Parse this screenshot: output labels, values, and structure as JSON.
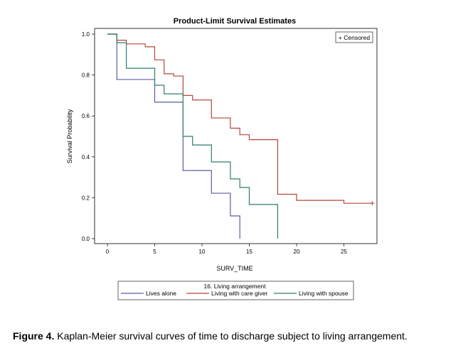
{
  "chart_data": {
    "type": "line",
    "step": true,
    "title": "Product-Limit Survival Estimates",
    "xlabel": "SURV_TIME",
    "ylabel": "Survival Probability",
    "xlim": [
      -2,
      28
    ],
    "ylim": [
      0,
      1
    ],
    "xticks": [
      "0",
      "5",
      "10",
      "15",
      "20",
      "25"
    ],
    "xtick_values": [
      0,
      5,
      10,
      15,
      20,
      25
    ],
    "yticks": [
      "0.0",
      "0.2",
      "0.4",
      "0.6",
      "0.8",
      "1.0"
    ],
    "ytick_values": [
      0,
      0.2,
      0.4,
      0.6,
      0.8,
      1.0
    ],
    "grid": false,
    "censored_legend": "+ Censored",
    "legend_title": "16. Living arrangement",
    "legend_position": "bottom",
    "series": [
      {
        "name": "Lives alone",
        "color": "#5b5ea6",
        "x": [
          0,
          1,
          5,
          8,
          11,
          13,
          14
        ],
        "y": [
          1.0,
          0.778,
          0.667,
          0.333,
          0.222,
          0.111,
          0.0
        ],
        "end_x": 14,
        "censored": []
      },
      {
        "name": "Living with care giver",
        "color": "#b5453a",
        "x": [
          0,
          1,
          2,
          4,
          5,
          6,
          7,
          8,
          9,
          11,
          13,
          14,
          15,
          18,
          20,
          25
        ],
        "y": [
          1.0,
          0.97,
          0.952,
          0.938,
          0.874,
          0.806,
          0.795,
          0.7,
          0.678,
          0.59,
          0.54,
          0.508,
          0.484,
          0.217,
          0.187,
          0.173
        ],
        "end_x": 28,
        "censored": [
          28
        ]
      },
      {
        "name": "Living with spouse",
        "color": "#2e7d6e",
        "x": [
          0,
          1,
          2,
          5,
          6,
          8,
          9,
          11,
          13,
          14,
          15,
          18
        ],
        "y": [
          1.0,
          0.958,
          0.833,
          0.75,
          0.708,
          0.5,
          0.458,
          0.375,
          0.292,
          0.25,
          0.167,
          0.0
        ],
        "end_x": 18,
        "censored": []
      }
    ]
  },
  "caption": {
    "label": "Figure 4.",
    "text": " Kaplan-Meier survival curves of time to discharge subject to living arrangement."
  }
}
